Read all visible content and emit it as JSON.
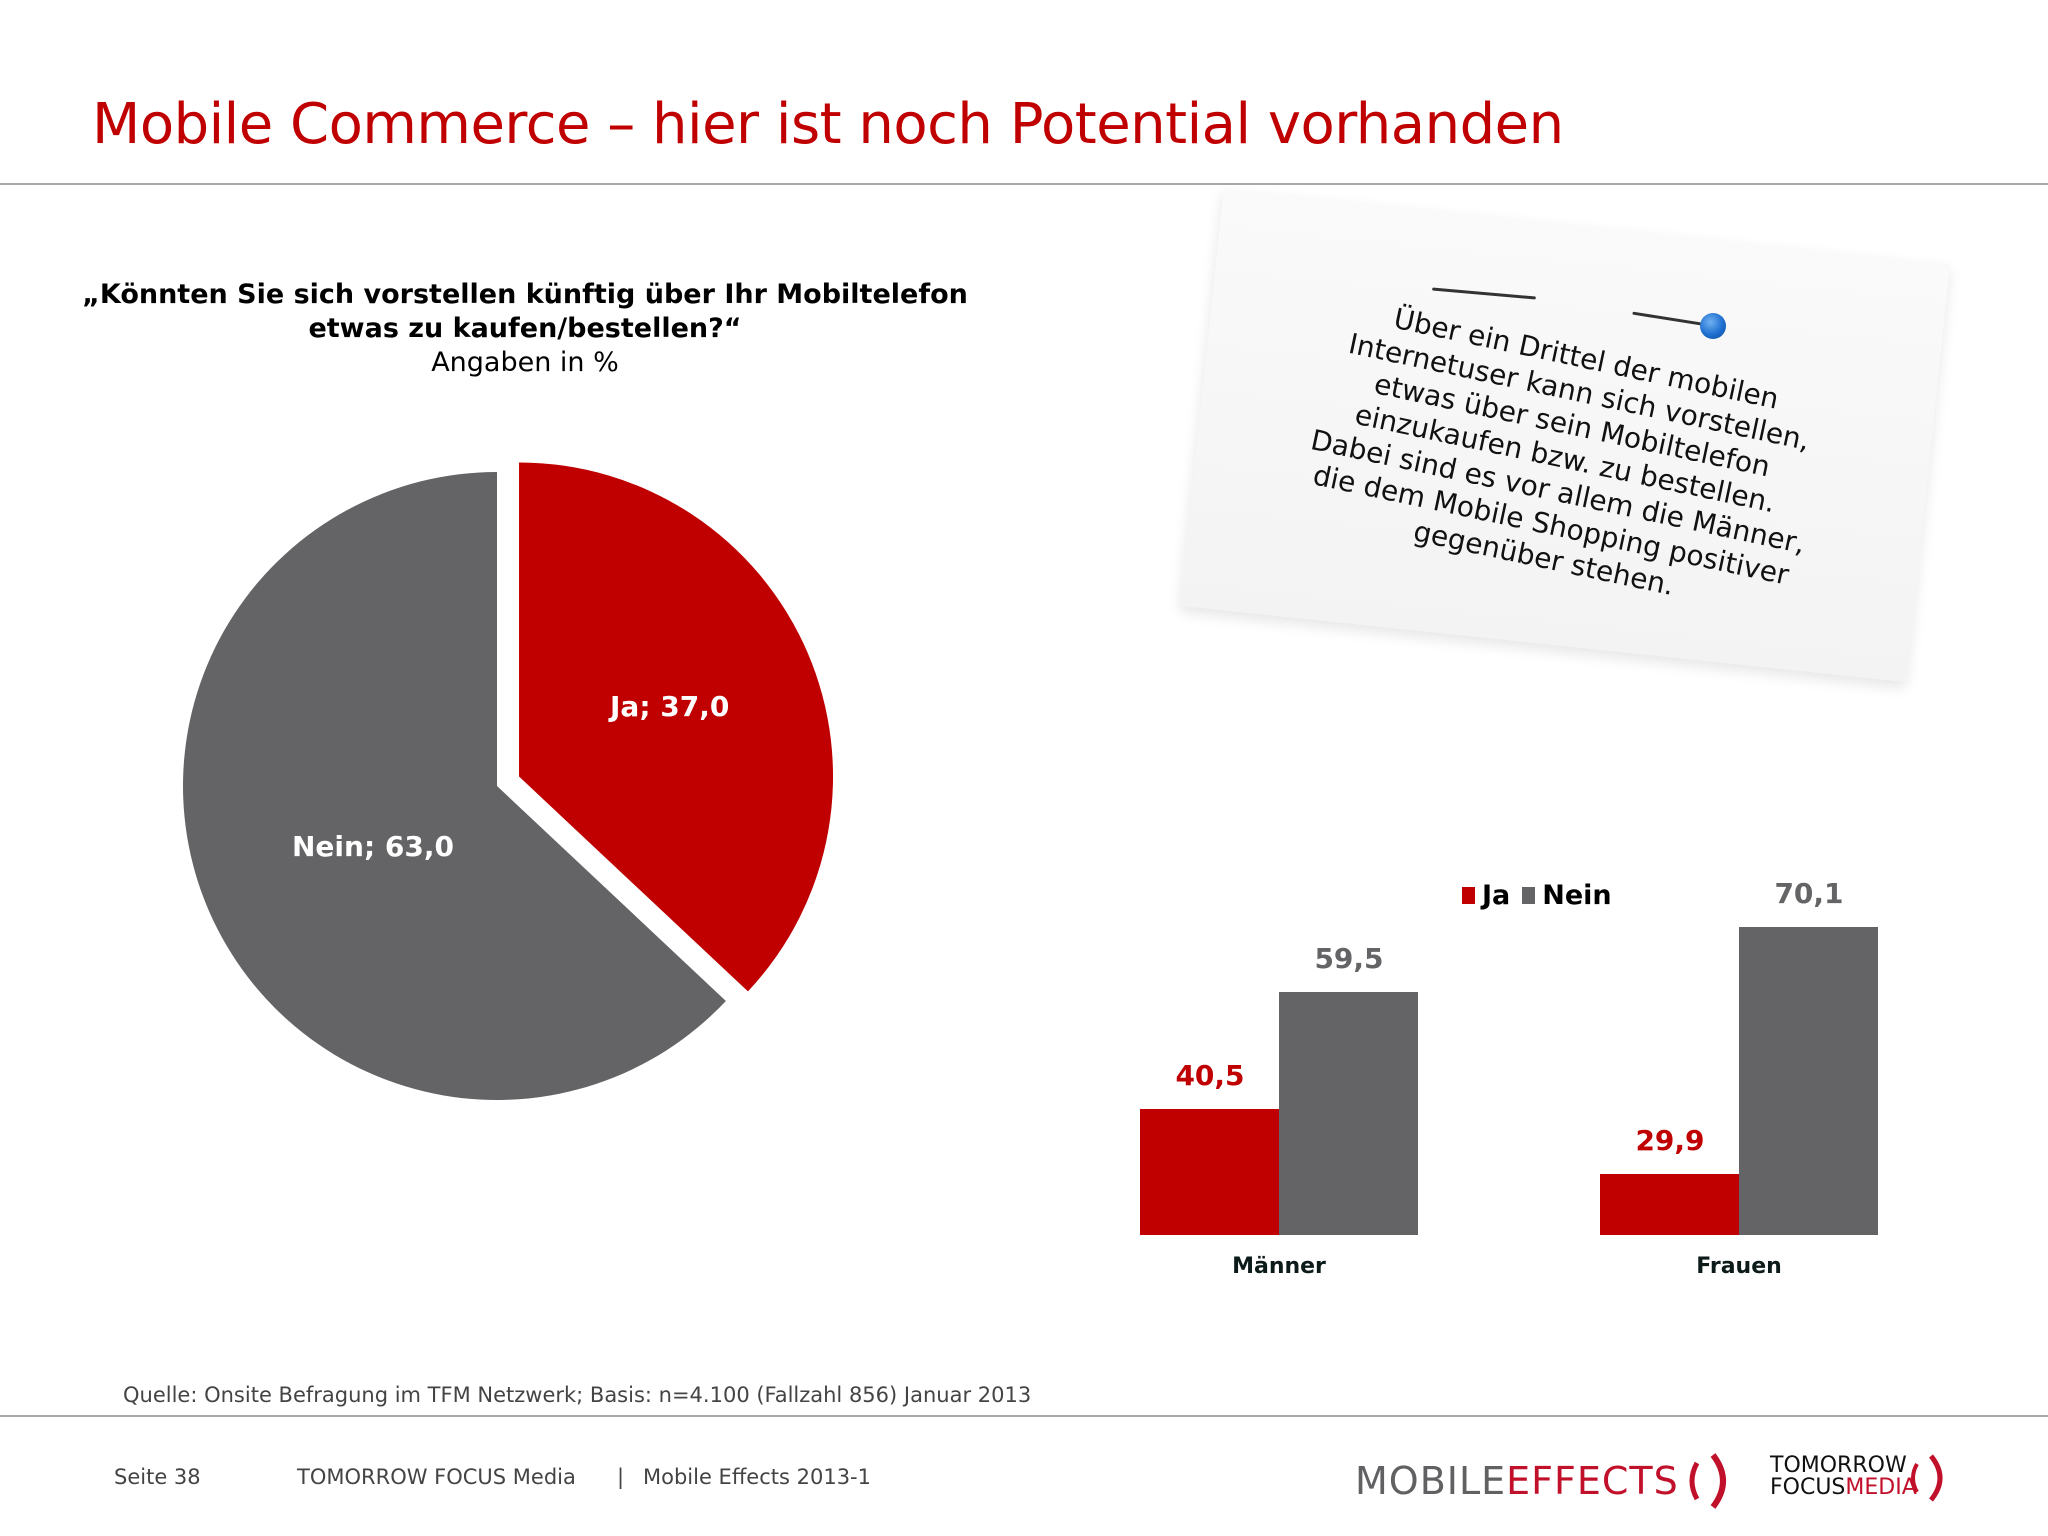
{
  "header": {
    "title": "Mobile Commerce – hier ist noch Potential vorhanden"
  },
  "question": {
    "line1": "„Könnten Sie sich vorstellen künftig über Ihr Mobiltelefon",
    "line2": "etwas zu kaufen/bestellen?“",
    "unit": "Angaben in %"
  },
  "note": {
    "lines": [
      "Über ein Drittel der mobilen",
      "Internetuser kann sich vorstellen,",
      "etwas über sein Mobiltelefon",
      "einzukaufen bzw. zu bestellen.",
      "Dabei sind es vor allem die Männer,",
      "die dem Mobile Shopping positiver",
      "gegenüber stehen."
    ]
  },
  "colors": {
    "accent_red": "#c00000",
    "ja": "#c00000",
    "nein": "#646366",
    "title": "#c00000"
  },
  "chart_data": [
    {
      "type": "pie",
      "title": "„Könnten Sie sich vorstellen künftig über Ihr Mobiltelefon etwas zu kaufen/bestellen?“",
      "subtitle": "Angaben in %",
      "categories": [
        "Ja",
        "Nein"
      ],
      "values": [
        37.0,
        63.0
      ],
      "labels": [
        "Ja; 37,0",
        "Nein; 63,0"
      ],
      "colors": [
        "#c00000",
        "#646366"
      ],
      "exploded": [
        "Ja"
      ]
    },
    {
      "type": "bar",
      "title": "",
      "categories": [
        "Männer",
        "Frauen"
      ],
      "series": [
        {
          "name": "Ja",
          "values": [
            40.5,
            29.9
          ],
          "labels": [
            "40,5",
            "29,9"
          ],
          "color": "#c00000"
        },
        {
          "name": "Nein",
          "values": [
            59.5,
            70.1
          ],
          "labels": [
            "59,5",
            "70,1"
          ],
          "color": "#646366"
        }
      ],
      "legend": [
        "Ja",
        "Nein"
      ],
      "legend_position": "top",
      "xlabel": "",
      "ylabel": "",
      "ylim": [
        20,
        75
      ],
      "grid": false
    }
  ],
  "footer": {
    "source": "Quelle: Onsite Befragung im TFM Netzwerk; Basis: n=4.100 (Fallzahl 856) Januar 2013",
    "page": "Seite 38",
    "company": "TOMORROW FOCUS Media",
    "separator": "|",
    "report": "Mobile Effects 2013-1",
    "logo_mobile_effects": {
      "part1": "MOBILE",
      "part2": "EFFECTS"
    },
    "logo_tfm": {
      "line1": "TOMORROW",
      "line2a": "FOCUS",
      "line2b": "MEDIA"
    }
  }
}
